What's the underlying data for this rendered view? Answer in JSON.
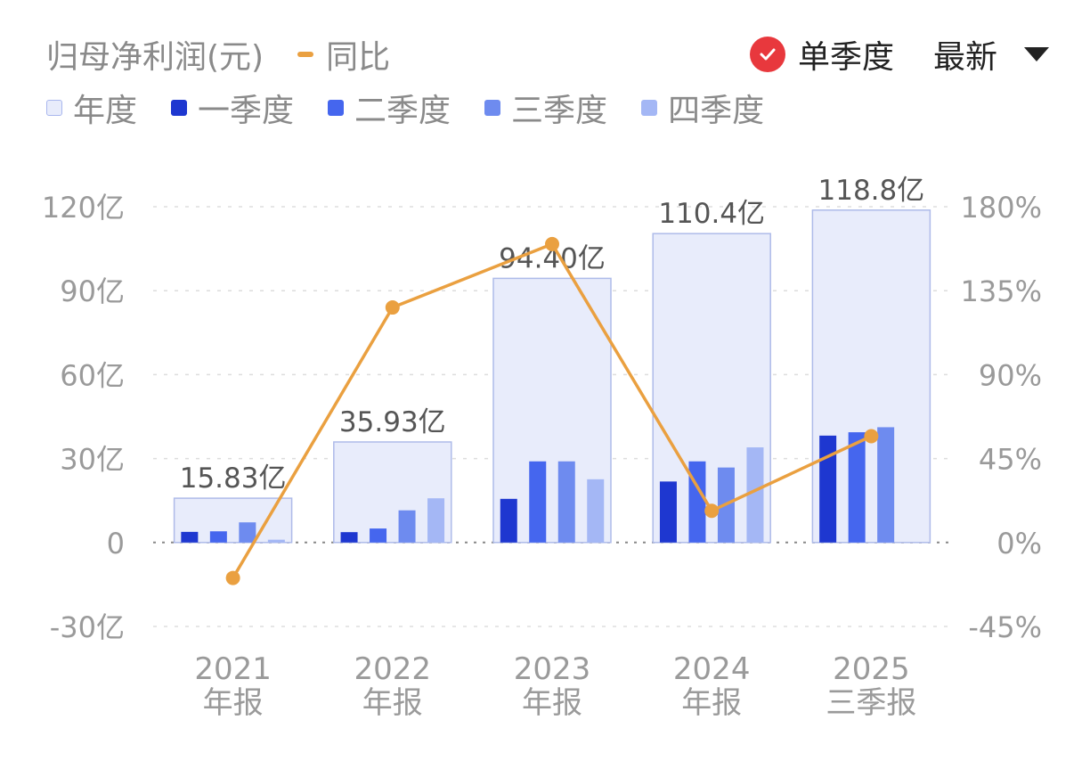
{
  "header": {
    "title": "归母净利润(元)",
    "yoy_label": "同比",
    "single_quarter_label": "单季度",
    "latest_label": "最新"
  },
  "legend": [
    {
      "label": "年度",
      "color": "#e8ecfb",
      "border": "#a9b7ee"
    },
    {
      "label": "一季度",
      "color": "#1e37d0"
    },
    {
      "label": "二季度",
      "color": "#4566ee"
    },
    {
      "label": "三季度",
      "color": "#6e8bef"
    },
    {
      "label": "四季度",
      "color": "#a4b7f5"
    }
  ],
  "colors": {
    "annual_fill": "#e8ecfb",
    "annual_border": "#aebbe9",
    "q1": "#1e37d0",
    "q2": "#4566ee",
    "q3": "#6e8bef",
    "q4": "#a4b7f5",
    "yoy_line": "#eaa040",
    "grid": "#dddddd",
    "tick": "#9a9a9a",
    "label": "#555555"
  },
  "chart_data": {
    "type": "bar",
    "categories": [
      {
        "year": "2021",
        "period": "年报"
      },
      {
        "year": "2022",
        "period": "年报"
      },
      {
        "year": "2023",
        "period": "年报"
      },
      {
        "year": "2024",
        "period": "年报"
      },
      {
        "year": "2025",
        "period": "三季报"
      }
    ],
    "annual": {
      "name": "年度",
      "values": [
        15.83,
        35.93,
        94.4,
        110.4,
        118.8
      ],
      "labels": [
        "15.83亿",
        "35.93亿",
        "94.40亿",
        "110.4亿",
        "118.8亿"
      ]
    },
    "series": [
      {
        "name": "一季度",
        "values": [
          3.8,
          3.7,
          15.6,
          21.8,
          38.2
        ]
      },
      {
        "name": "二季度",
        "values": [
          4.0,
          5.0,
          29.0,
          29.0,
          39.4
        ]
      },
      {
        "name": "三季度",
        "values": [
          7.2,
          11.5,
          29.0,
          26.8,
          41.2
        ]
      },
      {
        "name": "四季度",
        "values": [
          1.0,
          15.8,
          22.6,
          34.0,
          null
        ]
      }
    ],
    "yoy": {
      "name": "同比",
      "values": [
        -19,
        126,
        160,
        17,
        57
      ]
    },
    "y_left": {
      "ticks": [
        120,
        90,
        60,
        30,
        0,
        -30
      ],
      "tick_labels": [
        "120亿",
        "90亿",
        "60亿",
        "30亿",
        "0",
        "-30亿"
      ],
      "range": [
        -30,
        120
      ]
    },
    "y_right": {
      "ticks": [
        180,
        135,
        90,
        45,
        0,
        -45
      ],
      "tick_labels": [
        "180%",
        "135%",
        "90%",
        "45%",
        "0%",
        "-45%"
      ],
      "range": [
        -45,
        180
      ]
    },
    "grid": true
  }
}
